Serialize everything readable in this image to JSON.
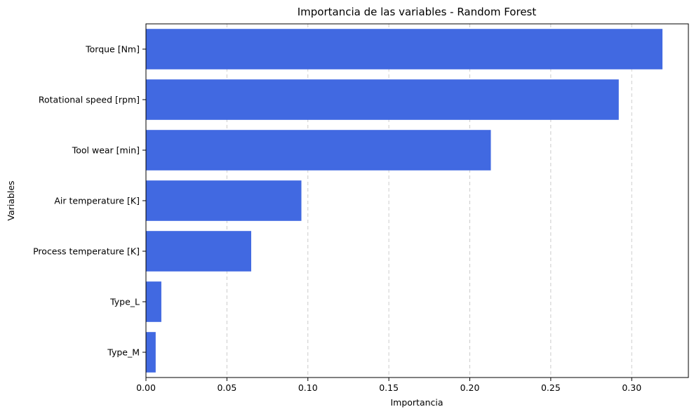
{
  "chart_data": {
    "type": "bar",
    "orientation": "horizontal",
    "title": "Importancia de las variables - Random Forest",
    "xlabel": "Importancia",
    "ylabel": "Variables",
    "categories": [
      "Torque [Nm]",
      "Rotational speed [rpm]",
      "Tool wear [min]",
      "Air temperature [K]",
      "Process temperature [K]",
      "Type_L",
      "Type_M"
    ],
    "values": [
      0.319,
      0.292,
      0.213,
      0.096,
      0.065,
      0.0095,
      0.006
    ],
    "xlim": [
      0,
      0.335
    ],
    "xticks": [
      0.0,
      0.05,
      0.1,
      0.15,
      0.2,
      0.25,
      0.3
    ],
    "xtick_labels": [
      "0.00",
      "0.05",
      "0.10",
      "0.15",
      "0.20",
      "0.25",
      "0.30"
    ],
    "grid": "x-dashed",
    "bar_color": "#4169e1",
    "grid_color": "#cccccc"
  }
}
